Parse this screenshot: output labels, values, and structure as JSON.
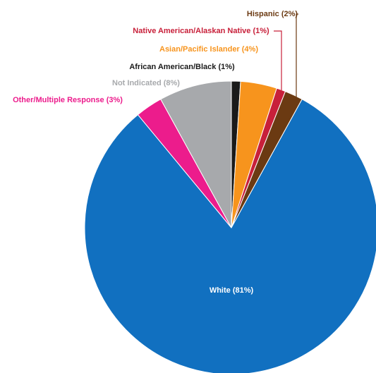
{
  "chart_data": {
    "type": "pie",
    "categories": [
      "African American/Black (1%)",
      "Asian/Pacific Islander (4%)",
      "Native American/Alaskan Native (1%)",
      "Hispanic (2%)",
      "White (81%)",
      "Other/Multiple Response (3%)",
      "Not Indicated (8%)"
    ],
    "values": [
      1,
      4,
      1,
      2,
      81,
      3,
      8
    ],
    "colors": [
      "#1a1a1a",
      "#f7941d",
      "#c8203a",
      "#6b3a12",
      "#1170c0",
      "#ec1c8c",
      "#a7a9ac"
    ]
  }
}
